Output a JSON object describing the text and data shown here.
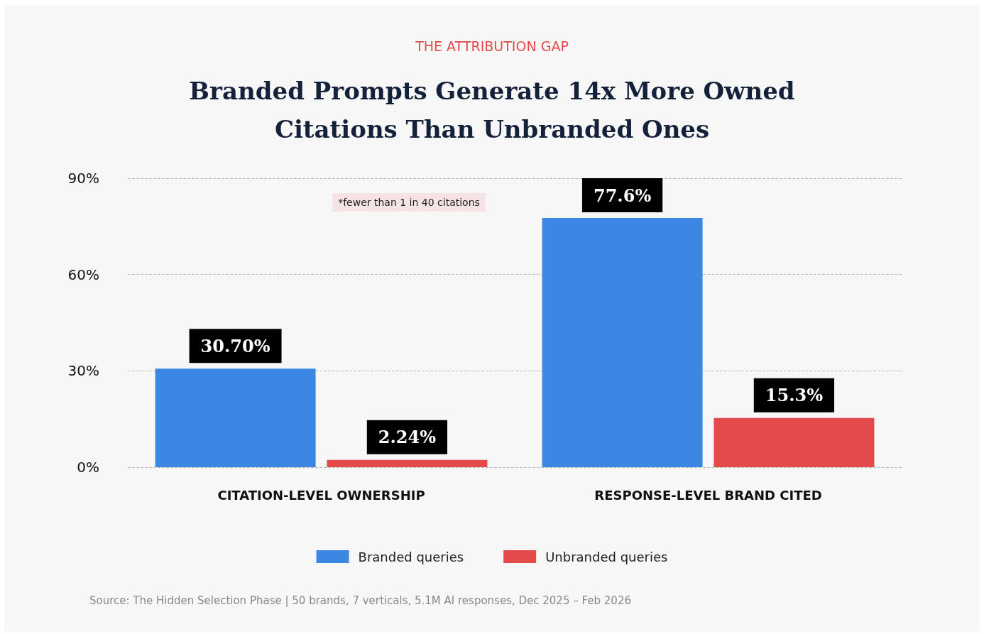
{
  "chart_data": {
    "type": "bar",
    "subtitle": "THE ATTRIBUTION GAP",
    "title": "Branded Prompts Generate 14x More Owned\nCitations Than Unbranded Ones",
    "categories": [
      "CITATION-LEVEL OWNERSHIP",
      "RESPONSE-LEVEL BRAND CITED"
    ],
    "series": [
      {
        "name": "Branded queries",
        "color": "#3d87e4",
        "values": [
          30.7,
          77.6
        ],
        "value_labels": [
          "30.70%",
          "77.6%"
        ]
      },
      {
        "name": "Unbranded queries",
        "color": "#e34a4a",
        "values": [
          2.24,
          15.3
        ],
        "value_labels": [
          "2.24%",
          "15.3%"
        ]
      }
    ],
    "ylim": [
      0,
      90
    ],
    "yticks": [
      {
        "value": 0,
        "label": "0%"
      },
      {
        "value": 30,
        "label": "30%"
      },
      {
        "value": 60,
        "label": "60%"
      },
      {
        "value": 90,
        "label": "90%"
      }
    ],
    "grid": "y",
    "legend": "bottom",
    "annotations": [
      "*fewer than 1 in 40 citations",
      "Source: The Hidden Selection Phase | 50 brands, 7 verticals, 5.1M AI responses, Dec 2025 – Feb 2026"
    ]
  }
}
